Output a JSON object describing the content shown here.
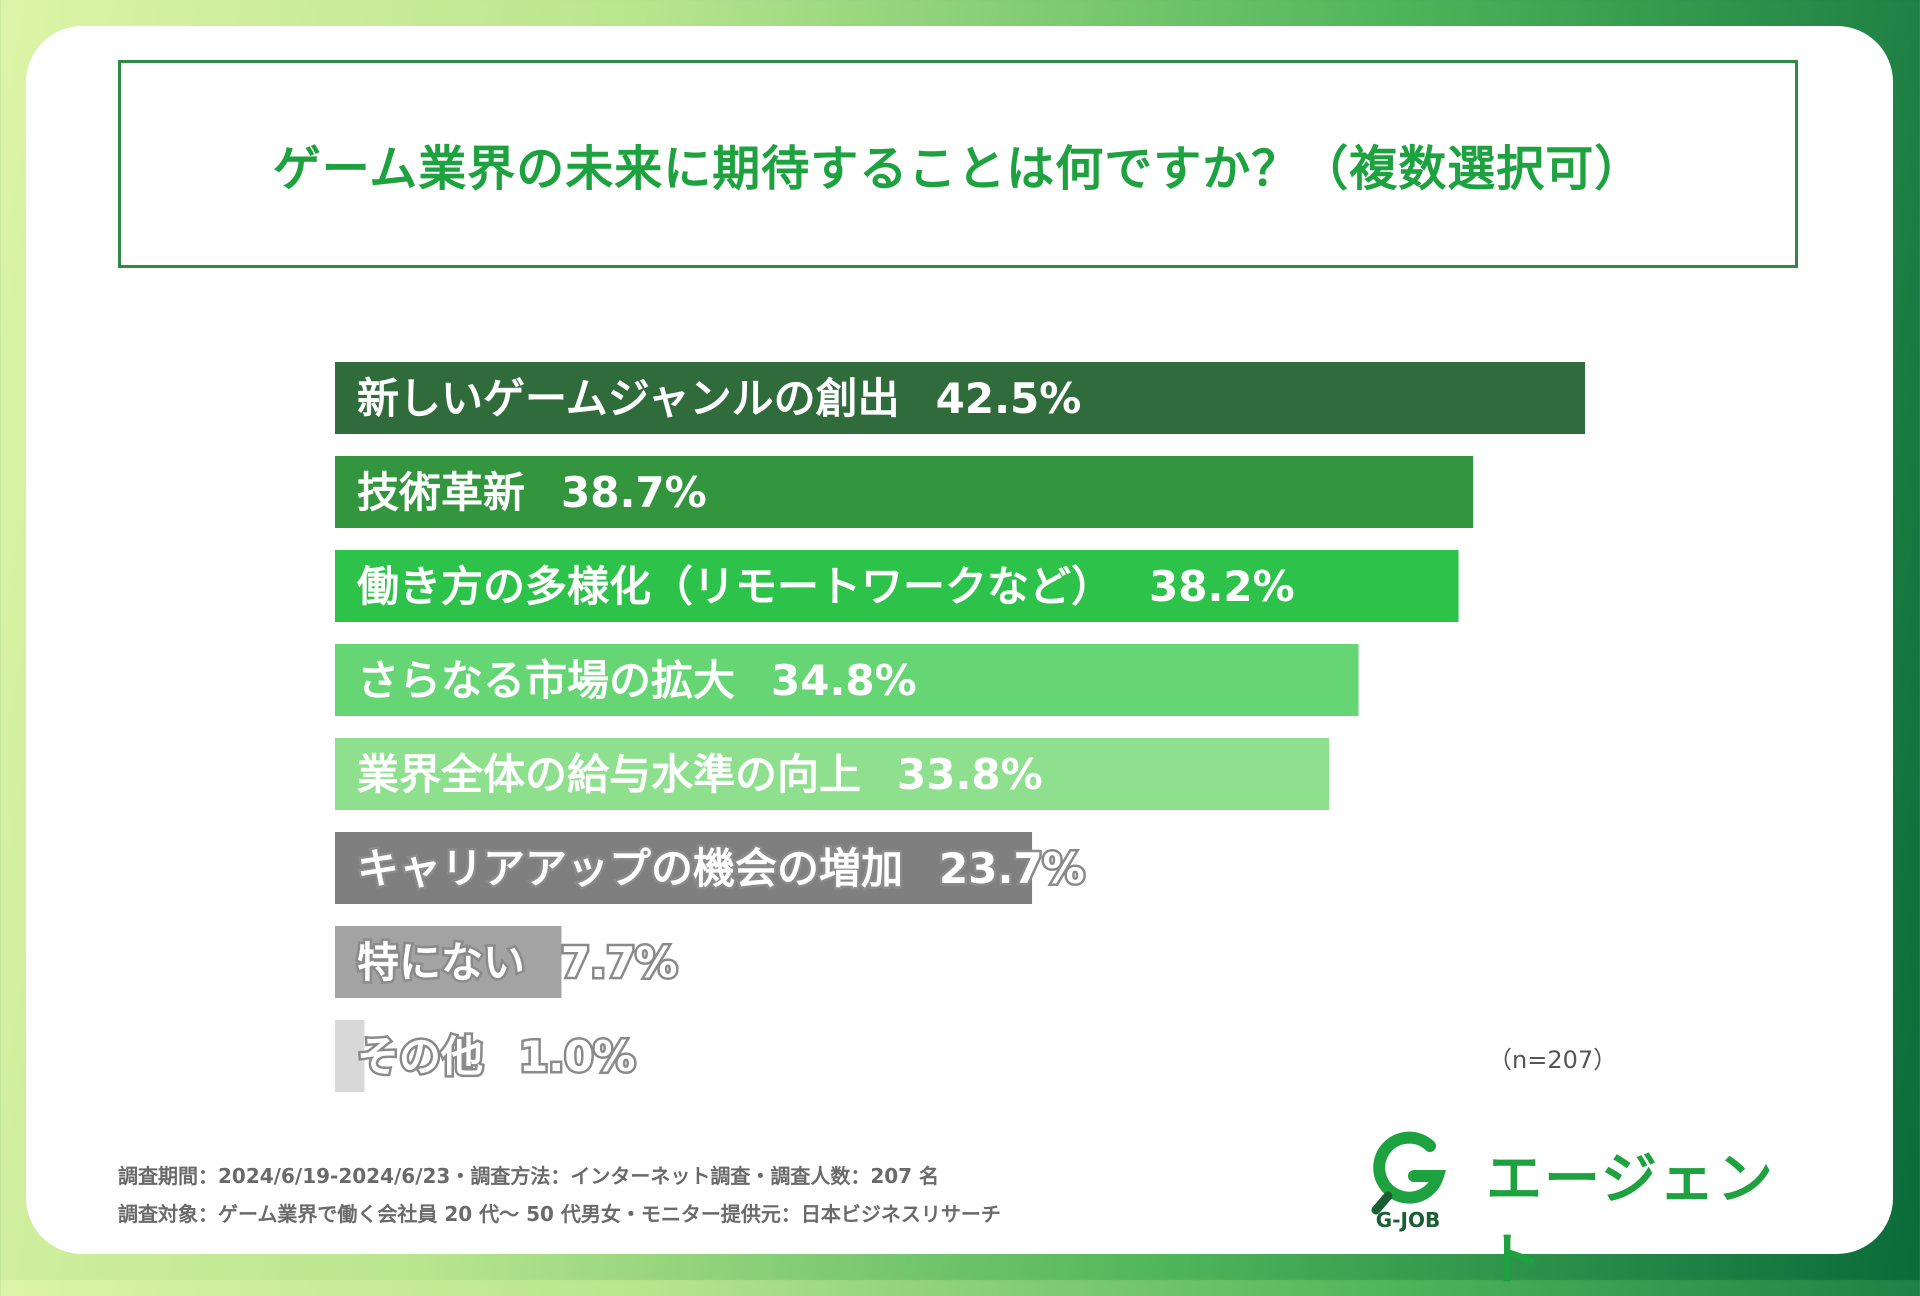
{
  "title": "ゲーム業界の未来に期待することは何ですか？（複数選択可）",
  "chart_data": {
    "type": "bar",
    "orientation": "horizontal",
    "title": "ゲーム業界の未来に期待することは何ですか？（複数選択可）",
    "unit": "%",
    "xlim": [
      0,
      42.5
    ],
    "categories": [
      "新しいゲームジャンルの創出",
      "技術革新",
      "働き方の多様化（リモートワークなど）",
      "さらなる市場の拡大",
      "業界全体の給与水準の向上",
      "キャリアアップの機会の増加",
      "特にない",
      "その他"
    ],
    "values": [
      42.5,
      38.7,
      38.2,
      34.8,
      33.8,
      23.7,
      7.7,
      1.0
    ],
    "value_labels": [
      "42.5%",
      "38.7%",
      "38.2%",
      "34.8%",
      "33.8%",
      "23.7%",
      "7.7%",
      "1.0%"
    ],
    "colors": [
      "#2f6b3b",
      "#33963f",
      "#2dc24a",
      "#66d675",
      "#8ee08f",
      "#7f7f7f",
      "#a3a3a3",
      "#d8d8d8"
    ],
    "sample_size": "（n=207）"
  },
  "footnotes": [
    "調査期間：2024/6/19-2024/6/23・調査方法：インターネット調査・調査人数：207 名",
    "調査対象：ゲーム業界で働く会社員 20 代〜 50 代男女・モニター提供元：日本ビジネスリサーチ"
  ],
  "logo": {
    "mark_icon": "g-magnifier-icon",
    "sub": "G-JOB",
    "text": "エージェント",
    "colors": {
      "green": "#1ea23f",
      "dark": "#1a5e33"
    }
  }
}
